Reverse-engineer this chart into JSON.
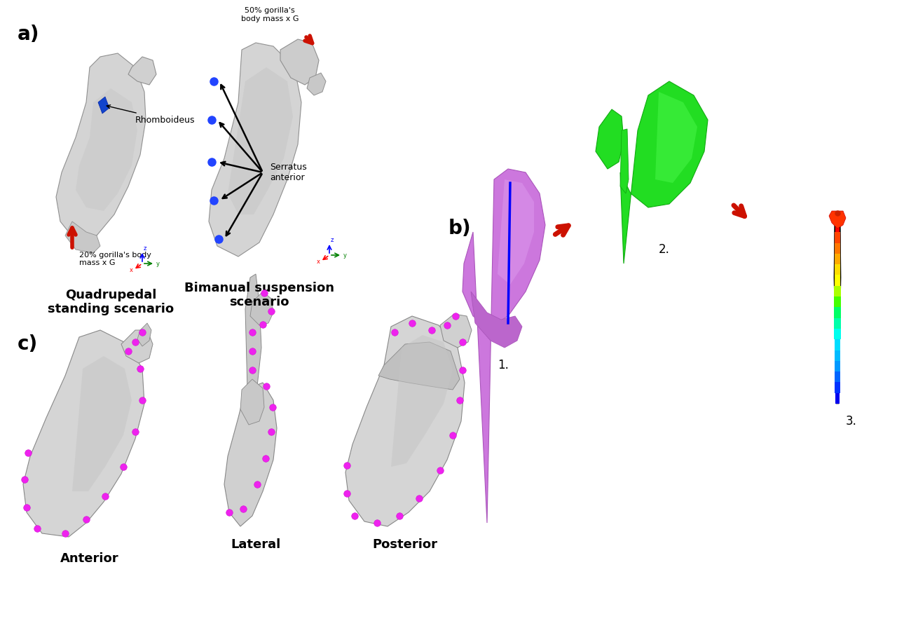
{
  "background_color": "#ffffff",
  "panel_a_label": "a)",
  "panel_b_label": "b)",
  "panel_c_label": "c)",
  "panel_a_title1": "Quadrupedal\nstanding scenario",
  "panel_a_title2": "Bimanual suspension\nscenario",
  "panel_b_nums": [
    "1.",
    "2.",
    "3."
  ],
  "panel_c_labels": [
    "Anterior",
    "Lateral",
    "Posterior"
  ],
  "rhomboideus_text": "Rhomboideus",
  "serratus_text": "Serratus\nanterior",
  "force1_text": "20% gorilla's body\nmass x G",
  "force2_text": "50% gorilla's\nbody mass x G",
  "label_fontsize": 20,
  "title_fontsize": 13,
  "annotation_fontsize": 9,
  "gray_bone": "#d2d2d2",
  "dark_bone": "#a8a8a8",
  "darker_bone": "#888888",
  "blue_dot": "#2244ff",
  "blue_shape": "#1144cc",
  "red_arrow": "#cc1100",
  "green_shape": "#22dd22",
  "bright_green": "#33ee33",
  "magenta_dot": "#ee22ee",
  "purple_shape": "#cc77dd",
  "edge_color": "#808080"
}
